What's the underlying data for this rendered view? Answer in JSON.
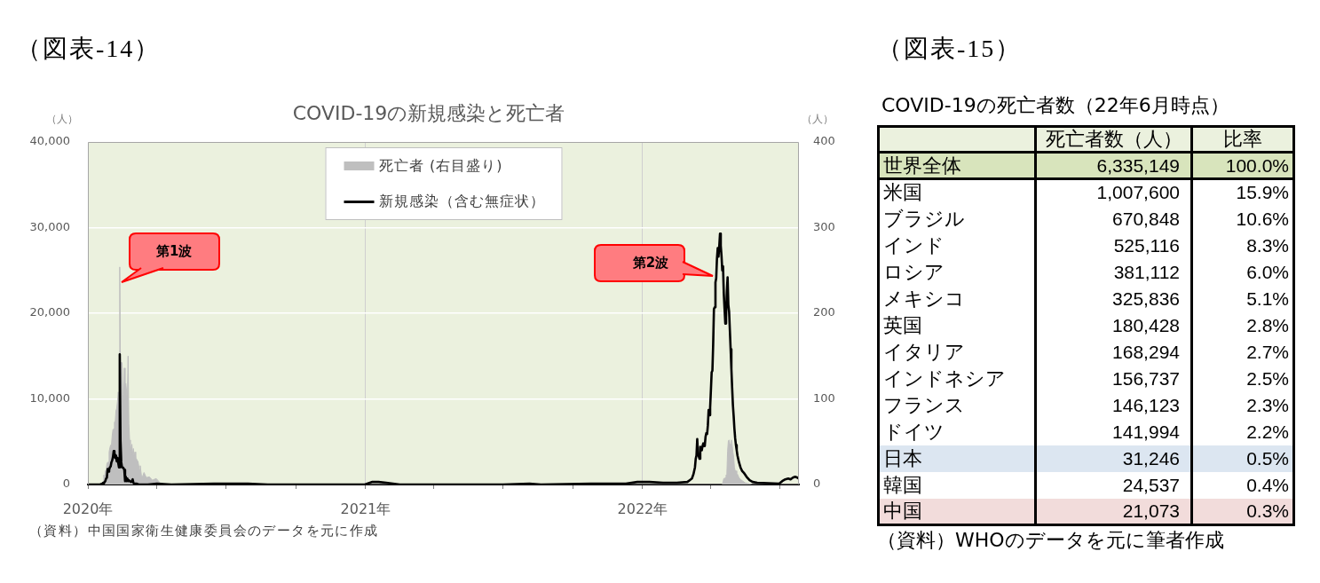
{
  "chart_data": [
    {
      "type": "line",
      "title": "COVID-19の新規感染と死亡者",
      "ylabel": "（人）",
      "y2label": "（人）",
      "xlim": [
        "2020-01-01",
        "2022-07-26"
      ],
      "xticks": [
        {
          "value": "2020-01-01",
          "label": "2020年"
        },
        {
          "value": "2020-04-01",
          "label": null
        },
        {
          "value": "2020-07-01",
          "label": null
        },
        {
          "value": "2020-10-01",
          "label": null
        },
        {
          "value": "2021-01-01",
          "label": "2021年"
        },
        {
          "value": "2021-04-01",
          "label": null
        },
        {
          "value": "2021-07-01",
          "label": null
        },
        {
          "value": "2021-10-01",
          "label": null
        },
        {
          "value": "2022-01-01",
          "label": "2022年"
        },
        {
          "value": "2022-04-01",
          "label": null
        },
        {
          "value": "2022-07-01",
          "label": null
        }
      ],
      "ylim": [
        0,
        40000
      ],
      "yticks": [
        0,
        {
          "value": 10000,
          "label": "10,000"
        },
        {
          "value": 20000,
          "label": "20,000"
        },
        {
          "value": 30000,
          "label": "30,000"
        },
        {
          "value": 40000,
          "label": "40,000"
        }
      ],
      "y2lim": [
        0,
        400
      ],
      "y2ticks": [
        0,
        100,
        200,
        300,
        400
      ],
      "grid": true,
      "legend": "top",
      "marker": "none",
      "series": [
        {
          "name": "死亡者 (右目盛り)",
          "type": "area",
          "axis": "y2",
          "color": "#bfbfbf",
          "x": [
            "2020-01-01",
            "2020-01-20",
            "2020-01-21",
            "2020-01-22",
            "2020-01-23",
            "2020-01-24",
            "2020-01-25",
            "2020-01-26",
            "2020-01-27",
            "2020-01-28",
            "2020-01-29",
            "2020-01-30",
            "2020-01-31",
            "2020-02-01",
            "2020-02-02",
            "2020-02-03",
            "2020-02-04",
            "2020-02-05",
            "2020-02-06",
            "2020-02-07",
            "2020-02-08",
            "2020-02-09",
            "2020-02-10",
            "2020-02-11",
            "2020-02-12",
            "2020-02-13",
            "2020-02-14",
            "2020-02-15",
            "2020-02-16",
            "2020-02-17",
            "2020-02-18",
            "2020-02-19",
            "2020-02-20",
            "2020-02-21",
            "2020-02-22",
            "2020-02-23",
            "2020-02-24",
            "2020-02-25",
            "2020-02-26",
            "2020-02-27",
            "2020-02-28",
            "2020-02-29",
            "2020-03-01",
            "2020-03-02",
            "2020-03-03",
            "2020-03-04",
            "2020-03-05",
            "2020-03-06",
            "2020-03-07",
            "2020-03-08",
            "2020-03-09",
            "2020-03-10",
            "2020-03-12",
            "2020-03-15",
            "2020-03-18",
            "2020-03-22",
            "2020-03-26",
            "2020-03-31",
            "2020-04-05",
            "2020-04-15",
            "2022-04-16",
            "2022-04-17",
            "2022-04-18",
            "2022-04-19",
            "2022-04-20",
            "2022-04-21",
            "2022-04-22",
            "2022-04-23",
            "2022-04-24",
            "2022-04-25",
            "2022-04-26",
            "2022-04-27",
            "2022-04-28",
            "2022-04-29",
            "2022-04-30",
            "2022-05-01",
            "2022-05-02",
            "2022-05-03",
            "2022-05-04",
            "2022-05-05",
            "2022-05-06",
            "2022-05-08",
            "2022-05-10",
            "2022-05-13",
            "2022-05-16",
            "2022-05-20",
            "2022-05-25",
            "2022-07-26"
          ],
          "values": [
            0,
            0,
            3,
            11,
            8,
            16,
            15,
            24,
            26,
            26,
            38,
            43,
            46,
            45,
            57,
            64,
            65,
            73,
            73,
            86,
            89,
            97,
            108,
            97,
            254,
            121,
            143,
            142,
            105,
            98,
            136,
            114,
            118,
            109,
            97,
            150,
            71,
            52,
            29,
            44,
            47,
            35,
            42,
            31,
            38,
            31,
            30,
            28,
            27,
            22,
            17,
            22,
            7,
            14,
            8,
            9,
            5,
            7,
            2,
            0,
            0,
            3,
            7,
            7,
            8,
            11,
            12,
            39,
            51,
            52,
            48,
            47,
            52,
            47,
            38,
            32,
            20,
            16,
            16,
            13,
            12,
            8,
            6,
            4,
            2,
            1,
            0,
            0
          ]
        },
        {
          "name": "新規感染（含む無症状）",
          "type": "line",
          "color": "#000000",
          "x": [
            "2020-01-01",
            "2020-01-17",
            "2020-01-20",
            "2020-01-21",
            "2020-01-22",
            "2020-01-23",
            "2020-01-24",
            "2020-01-25",
            "2020-01-26",
            "2020-01-27",
            "2020-01-28",
            "2020-01-29",
            "2020-01-30",
            "2020-01-31",
            "2020-02-01",
            "2020-02-02",
            "2020-02-03",
            "2020-02-04",
            "2020-02-05",
            "2020-02-06",
            "2020-02-07",
            "2020-02-08",
            "2020-02-09",
            "2020-02-10",
            "2020-02-11",
            "2020-02-12",
            "2020-02-13",
            "2020-02-14",
            "2020-02-15",
            "2020-02-16",
            "2020-02-17",
            "2020-02-18",
            "2020-02-19",
            "2020-02-20",
            "2020-02-21",
            "2020-02-22",
            "2020-02-23",
            "2020-02-24",
            "2020-02-25",
            "2020-02-26",
            "2020-02-27",
            "2020-02-28",
            "2020-02-29",
            "2020-03-01",
            "2020-03-02",
            "2020-03-03",
            "2020-03-04",
            "2020-03-05",
            "2020-03-08",
            "2020-03-12",
            "2020-03-20",
            "2020-04-01",
            "2020-04-20",
            "2020-06-15",
            "2020-07-30",
            "2020-08-25",
            "2020-10-12",
            "2020-12-01",
            "2020-12-31",
            "2021-01-10",
            "2021-01-18",
            "2021-01-28",
            "2021-02-15",
            "2021-07-01",
            "2021-08-05",
            "2021-08-20",
            "2021-10-25",
            "2021-12-10",
            "2021-12-25",
            "2022-01-10",
            "2022-01-28",
            "2022-02-15",
            "2022-03-01",
            "2022-03-04",
            "2022-03-07",
            "2022-03-09",
            "2022-03-11",
            "2022-03-12",
            "2022-03-13",
            "2022-03-14",
            "2022-03-15",
            "2022-03-16",
            "2022-03-17",
            "2022-03-18",
            "2022-03-19",
            "2022-03-20",
            "2022-03-21",
            "2022-03-22",
            "2022-03-23",
            "2022-03-24",
            "2022-03-25",
            "2022-03-26",
            "2022-03-27",
            "2022-03-28",
            "2022-03-29",
            "2022-03-30",
            "2022-03-31",
            "2022-04-01",
            "2022-04-02",
            "2022-04-03",
            "2022-04-04",
            "2022-04-05",
            "2022-04-06",
            "2022-04-07",
            "2022-04-08",
            "2022-04-09",
            "2022-04-10",
            "2022-04-11",
            "2022-04-12",
            "2022-04-13",
            "2022-04-14",
            "2022-04-15",
            "2022-04-16",
            "2022-04-17",
            "2022-04-18",
            "2022-04-19",
            "2022-04-20",
            "2022-04-21",
            "2022-04-22",
            "2022-04-23",
            "2022-04-24",
            "2022-04-25",
            "2022-04-26",
            "2022-04-27",
            "2022-04-28",
            "2022-04-29",
            "2022-04-30",
            "2022-05-01",
            "2022-05-02",
            "2022-05-03",
            "2022-05-04",
            "2022-05-05",
            "2022-05-06",
            "2022-05-08",
            "2022-05-10",
            "2022-05-12",
            "2022-05-15",
            "2022-05-18",
            "2022-05-22",
            "2022-05-26",
            "2022-06-01",
            "2022-06-30",
            "2022-07-04",
            "2022-07-08",
            "2022-07-12",
            "2022-07-15",
            "2022-07-18",
            "2022-07-21",
            "2022-07-24",
            "2022-07-26"
          ],
          "values": [
            0,
            0,
            100,
            200,
            100,
            300,
            400,
            700,
            800,
            1800,
            1500,
            1700,
            2000,
            2100,
            2600,
            2800,
            3200,
            3900,
            3700,
            3100,
            3400,
            2700,
            3100,
            2500,
            2000,
            15200,
            5100,
            2600,
            2000,
            2000,
            1900,
            1700,
            400,
            900,
            400,
            700,
            400,
            500,
            400,
            400,
            300,
            400,
            600,
            200,
            100,
            100,
            100,
            100,
            0,
            0,
            0,
            100,
            0,
            100,
            100,
            0,
            0,
            0,
            0,
            300,
            300,
            200,
            0,
            0,
            100,
            0,
            100,
            100,
            300,
            300,
            200,
            200,
            300,
            500,
            700,
            1200,
            2000,
            3000,
            3400,
            5300,
            3500,
            3300,
            3000,
            4400,
            4000,
            4000,
            4500,
            4800,
            4500,
            4600,
            5600,
            6000,
            5900,
            6900,
            8700,
            8100,
            9000,
            11000,
            13100,
            13300,
            16400,
            20500,
            20700,
            23600,
            24100,
            26400,
            27600,
            26600,
            27800,
            29300,
            27900,
            26700,
            25000,
            25500,
            22300,
            20500,
            18800,
            19500,
            22500,
            24200,
            21000,
            20200,
            18000,
            15800,
            13500,
            11300,
            9300,
            8000,
            6500,
            5400,
            4600,
            4000,
            3400,
            2600,
            2000,
            1600,
            1300,
            900,
            500,
            300,
            200,
            100,
            400,
            600,
            700,
            600,
            800,
            900,
            800,
            700
          ]
        }
      ],
      "annotations": [
        "（図表-14）",
        {
          "text": "第1波",
          "x": "2020-02-14",
          "y": 23600
        },
        {
          "text": "第2波",
          "x": "2022-04-04",
          "y": 24400
        },
        "（資料）中国国家衛生健康委員会のデータを元に作成"
      ]
    },
    {
      "type": "other",
      "title": "COVID-19の死亡者数（22年6月時点）",
      "categories": [
        "世界全体",
        "米国",
        "ブラジル",
        "インド",
        "ロシア",
        "メキシコ",
        "英国",
        "イタリア",
        "インドネシア",
        "フランス",
        "ドイツ",
        "日本",
        "韓国",
        "中国"
      ],
      "colors": [
        "#d8e4bc",
        "#ffffff",
        "#ffffff",
        "#ffffff",
        "#ffffff",
        "#ffffff",
        "#ffffff",
        "#ffffff",
        "#ffffff",
        "#ffffff",
        "#ffffff",
        "#dce6f1",
        "#ffffff",
        "#f2dcdb"
      ],
      "series": [
        {
          "name": "死亡者数（人）",
          "colors": [
            "#d8e4bc",
            "#ffffff",
            "#ffffff",
            "#ffffff",
            "#ffffff",
            "#ffffff",
            "#ffffff",
            "#ffffff",
            "#ffffff",
            "#ffffff",
            "#ffffff",
            "#dce6f1",
            "#ffffff",
            "#f2dcdb"
          ],
          "values": [
            6335149,
            1007600,
            670848,
            525116,
            381112,
            325836,
            180428,
            168294,
            156737,
            146123,
            141994,
            31246,
            24537,
            21073
          ],
          "value_labels": [
            "6,335,149",
            "1,007,600",
            "670,848",
            "525,116",
            "381,112",
            "325,836",
            "180,428",
            "168,294",
            "156,737",
            "146,123",
            "141,994",
            "31,246",
            "24,537",
            "21,073"
          ]
        },
        {
          "name": "比率",
          "colors": [
            "#d8e4bc",
            "#ffffff",
            "#ffffff",
            "#ffffff",
            "#ffffff",
            "#ffffff",
            "#ffffff",
            "#ffffff",
            "#ffffff",
            "#ffffff",
            "#ffffff",
            "#dce6f1",
            "#ffffff",
            "#f2dcdb"
          ],
          "values": [
            100.0,
            15.9,
            10.6,
            8.3,
            6.0,
            5.1,
            2.8,
            2.7,
            2.5,
            2.3,
            2.2,
            0.5,
            0.4,
            0.3
          ],
          "value_labels": [
            "100.0%",
            "15.9%",
            "10.6%",
            "8.3%",
            "6.0%",
            "5.1%",
            "2.8%",
            "2.7%",
            "2.5%",
            "2.3%",
            "2.2%",
            "0.5%",
            "0.4%",
            "0.3%"
          ]
        }
      ],
      "annotations": [
        "（図表-15）",
        "（資料）WHOのデータを元に筆者作成"
      ]
    }
  ]
}
